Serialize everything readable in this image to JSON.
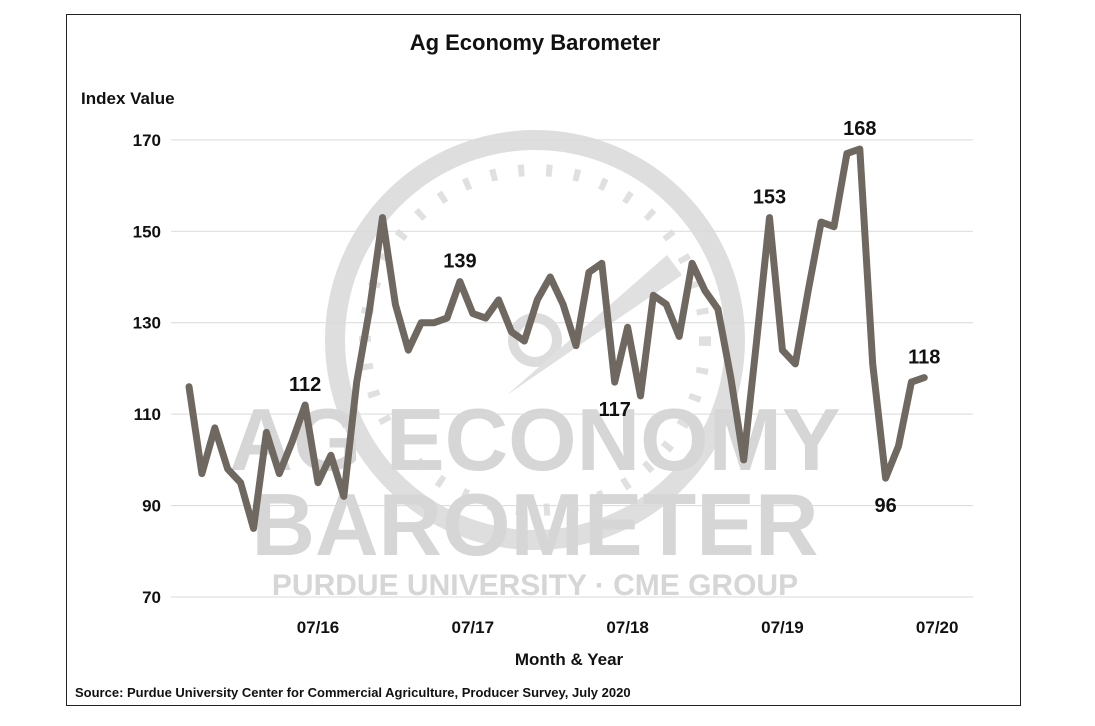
{
  "chart_data": {
    "type": "line",
    "title": "Ag Economy Barometer",
    "ylabel": "Index Value",
    "xlabel": "Month & Year",
    "source": "Source: Purdue University Center for Commercial Agriculture, Producer Survey, July 2020",
    "ylim": [
      70,
      175
    ],
    "yticks": [
      70,
      90,
      110,
      130,
      150,
      170
    ],
    "grid": true,
    "legend": "none",
    "line_color": "#6f6861",
    "watermark": {
      "line1": "AG ECONOMY",
      "line2": "BAROMETER",
      "line3": "PURDUE UNIVERSITY · CME GROUP"
    },
    "x_tick_labels": [
      {
        "label": "07/16",
        "index": 10
      },
      {
        "label": "07/17",
        "index": 22
      },
      {
        "label": "07/18",
        "index": 34
      },
      {
        "label": "07/19",
        "index": 46
      },
      {
        "label": "07/20",
        "index": 58
      }
    ],
    "values": [
      116,
      97,
      107,
      98,
      95,
      85,
      106,
      97,
      104,
      112,
      95,
      101,
      92,
      117,
      133,
      153,
      134,
      124,
      130,
      130,
      131,
      139,
      132,
      131,
      135,
      128,
      126,
      135,
      140,
      134,
      125,
      141,
      143,
      117,
      129,
      114,
      136,
      134,
      127,
      143,
      137,
      133,
      118,
      100,
      126,
      153,
      124,
      121,
      137,
      152,
      151,
      167,
      168,
      121,
      96,
      103,
      117,
      118
    ],
    "annotations": [
      {
        "index": 9,
        "value": 112,
        "text": "112"
      },
      {
        "index": 21,
        "value": 139,
        "text": "139"
      },
      {
        "index": 33,
        "value": 117,
        "text": "117"
      },
      {
        "index": 45,
        "value": 153,
        "text": "153"
      },
      {
        "index": 52,
        "value": 168,
        "text": "168"
      },
      {
        "index": 54,
        "value": 96,
        "text": "96"
      },
      {
        "index": 57,
        "value": 118,
        "text": "118"
      }
    ]
  }
}
